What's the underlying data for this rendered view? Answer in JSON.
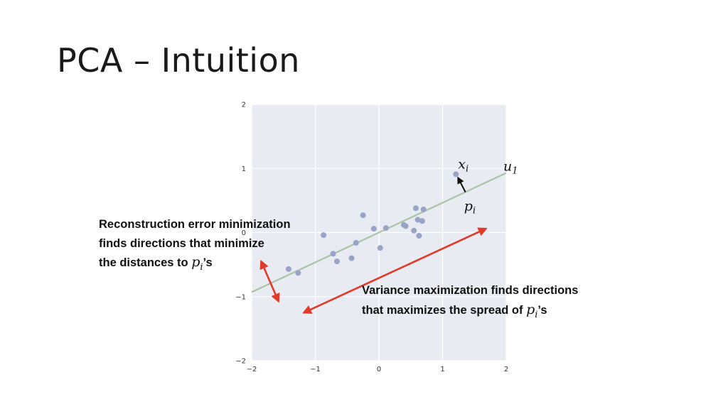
{
  "slide": {
    "title": "PCA – Intuition"
  },
  "chart_data": {
    "type": "scatter",
    "xlim": [
      -2,
      2
    ],
    "ylim": [
      -2,
      2
    ],
    "grid": true,
    "x_ticks": [
      "−2",
      "−1",
      "0",
      "1",
      "2"
    ],
    "y_ticks": [
      "2",
      "1",
      "0",
      "−1",
      "−2"
    ],
    "points": [
      {
        "x": -1.42,
        "y": -0.57
      },
      {
        "x": -1.27,
        "y": -0.63
      },
      {
        "x": -0.87,
        "y": -0.04
      },
      {
        "x": -0.72,
        "y": -0.33
      },
      {
        "x": -0.66,
        "y": -0.45
      },
      {
        "x": -0.43,
        "y": -0.4
      },
      {
        "x": -0.36,
        "y": -0.16
      },
      {
        "x": -0.25,
        "y": 0.27
      },
      {
        "x": -0.08,
        "y": 0.06
      },
      {
        "x": 0.02,
        "y": -0.24
      },
      {
        "x": 0.11,
        "y": 0.07
      },
      {
        "x": 0.39,
        "y": 0.12
      },
      {
        "x": 0.42,
        "y": 0.1
      },
      {
        "x": 0.55,
        "y": 0.03
      },
      {
        "x": 0.58,
        "y": 0.38
      },
      {
        "x": 0.61,
        "y": 0.2
      },
      {
        "x": 0.63,
        "y": -0.05
      },
      {
        "x": 0.68,
        "y": 0.18
      },
      {
        "x": 0.7,
        "y": 0.36
      },
      {
        "x": 1.21,
        "y": 0.91
      }
    ],
    "principal_axis": {
      "from": [
        -2,
        -0.93
      ],
      "to": [
        2,
        0.93
      ]
    },
    "highlight_point": {
      "x": 1.21,
      "y": 0.91
    },
    "projection_point": {
      "x": 1.36,
      "y": 0.63
    },
    "labels": {
      "x_i": {
        "base": "x",
        "sub": "i"
      },
      "u_1": {
        "base": "u",
        "sub": "1"
      },
      "p_i": {
        "base": "p",
        "sub": "i"
      }
    },
    "red_arrows": [
      {
        "name": "reconstruction-error-arrow",
        "from": [
          -1.85,
          -0.45
        ],
        "to": [
          -1.58,
          -1.07
        ]
      },
      {
        "name": "variance-arrow",
        "from": [
          1.68,
          0.06
        ],
        "to": [
          -1.18,
          -1.25
        ]
      }
    ],
    "colors": {
      "background": "#e8ebf1",
      "grid": "#ffffff",
      "points": "#98a4c8",
      "axis_line": "#a9c4a5",
      "arrows": "#e23a28",
      "projection_arrow": "#111111"
    }
  },
  "annotations": {
    "reconstruction": {
      "line1": "Reconstruction error minimization",
      "line2": "finds directions that minimize",
      "line3_prefix": "the distances to ",
      "p_base": "p",
      "p_sub": "i",
      "suffix": "’s"
    },
    "variance": {
      "line1": "Variance maximization finds directions",
      "line2_prefix": "that maximizes the spread of ",
      "p_base": "p",
      "p_sub": "i",
      "suffix": "’s"
    }
  }
}
